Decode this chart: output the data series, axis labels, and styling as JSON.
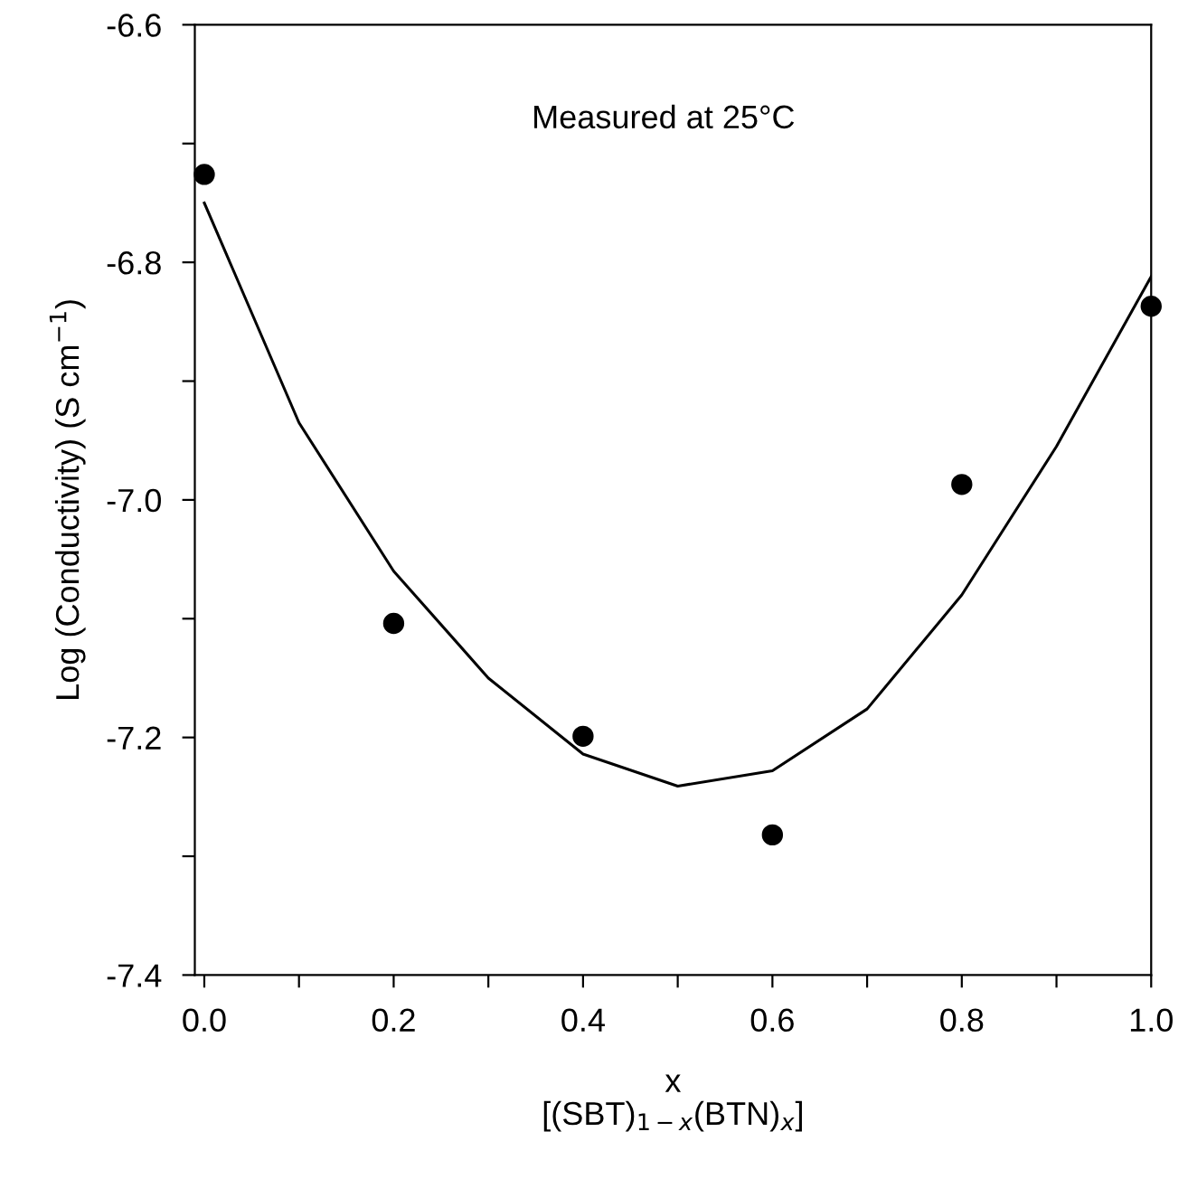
{
  "chart_data": {
    "type": "scatter",
    "xlabel": "x\n[(SBT)$_{1−x}$(BTN)$_{x}$]",
    "ylabel": "Log (Conductivity) (S cm$^{−1}$)",
    "annotations": [
      "Measured at 25°C"
    ],
    "xlim": [
      -0.01,
      1.0
    ],
    "ylim": [
      -7.4,
      -6.6
    ],
    "xticks": [
      {
        "value": 0.0,
        "label": "0.0"
      },
      {
        "value": 0.1,
        "label": null
      },
      {
        "value": 0.2,
        "label": "0.2"
      },
      {
        "value": 0.3,
        "label": null
      },
      {
        "value": 0.4,
        "label": "0.4"
      },
      {
        "value": 0.5,
        "label": null
      },
      {
        "value": 0.6,
        "label": "0.6"
      },
      {
        "value": 0.7,
        "label": null
      },
      {
        "value": 0.8,
        "label": "0.8"
      },
      {
        "value": 0.9,
        "label": null
      },
      {
        "value": 1.0,
        "label": "1.0"
      }
    ],
    "yticks": [
      {
        "value": -7.4,
        "label": "-7.4"
      },
      {
        "value": -7.3,
        "label": null
      },
      {
        "value": -7.2,
        "label": "-7.2"
      },
      {
        "value": -7.1,
        "label": null
      },
      {
        "value": -7.0,
        "label": "-7.0"
      },
      {
        "value": -6.9,
        "label": null
      },
      {
        "value": -6.8,
        "label": "-6.8"
      },
      {
        "value": -6.7,
        "label": null
      },
      {
        "value": -6.6,
        "label": "-6.6"
      }
    ],
    "grid": false,
    "legend": false,
    "series": [
      {
        "color": "#000000",
        "marker": "circle",
        "x": [
          0.0,
          0.2,
          0.4,
          0.6,
          0.8,
          1.0
        ],
        "values": [
          -6.726,
          -7.104,
          -7.199,
          -7.282,
          -6.987,
          -6.837
        ]
      },
      {
        "type": "line",
        "color": "#000000",
        "marker": "none",
        "line_style": "solid",
        "x": [
          0.0,
          0.1,
          0.2,
          0.3,
          0.4,
          0.5,
          0.6,
          0.7,
          0.8,
          0.9,
          1.0
        ],
        "values": [
          -6.75,
          -6.935,
          -7.06,
          -7.15,
          -7.214,
          -7.241,
          -7.228,
          -7.176,
          -7.08,
          -6.955,
          -6.812
        ]
      }
    ]
  }
}
